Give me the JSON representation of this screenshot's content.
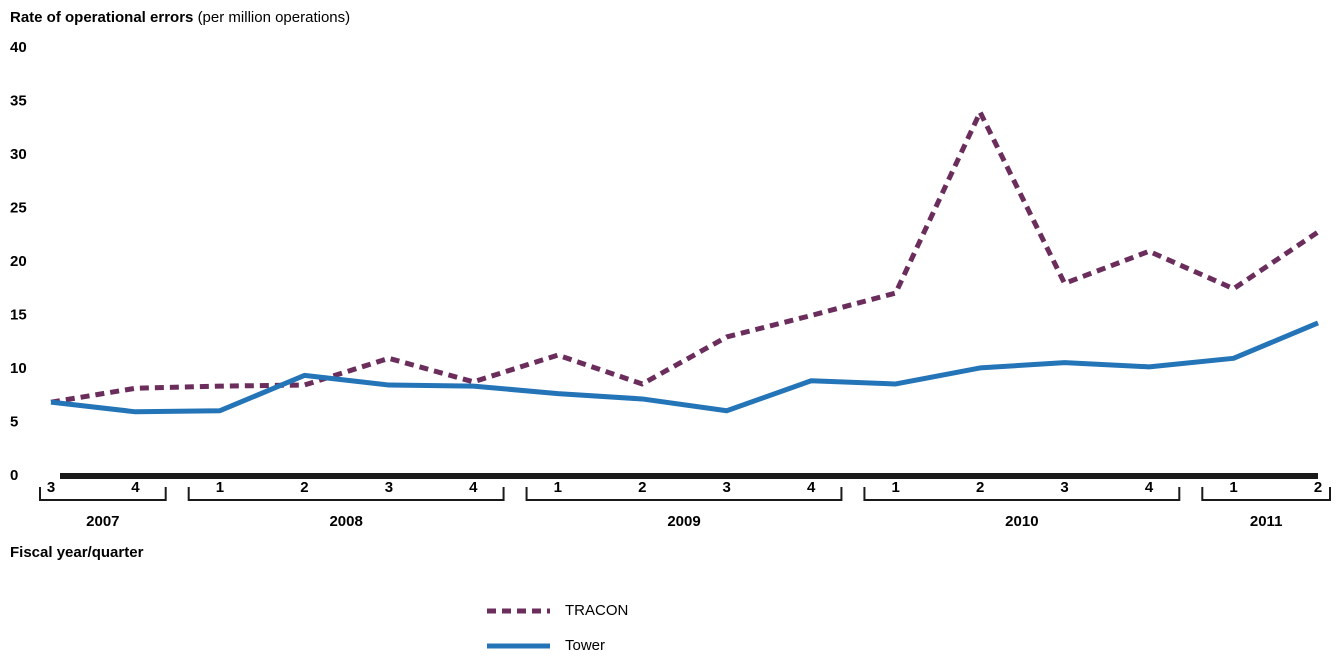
{
  "chart_data": {
    "type": "line",
    "y_label": "Rate of operational errors",
    "y_label_unit": "(per million operations)",
    "x_label": "Fiscal year/quarter",
    "categories": [
      "3",
      "4",
      "1",
      "2",
      "3",
      "4",
      "1",
      "2",
      "3",
      "4",
      "1",
      "2",
      "3",
      "4",
      "1",
      "2"
    ],
    "year_groups": [
      {
        "label": "2007",
        "count": 2
      },
      {
        "label": "2008",
        "count": 4
      },
      {
        "label": "2009",
        "count": 4
      },
      {
        "label": "2010",
        "count": 4
      },
      {
        "label": "2011",
        "count": 2
      }
    ],
    "series": [
      {
        "name": "TRACON",
        "color": "#6b2d5c",
        "dashed": true,
        "values": [
          6.9,
          8.2,
          8.4,
          8.5,
          11.0,
          8.8,
          11.3,
          8.6,
          13.0,
          15.0,
          17.1,
          34.0,
          18.0,
          21.0,
          17.5,
          22.8
        ]
      },
      {
        "name": "Tower",
        "color": "#2474b8",
        "dashed": false,
        "values": [
          6.9,
          6.0,
          6.1,
          9.4,
          8.5,
          8.4,
          7.7,
          7.2,
          6.1,
          8.9,
          8.6,
          10.1,
          10.6,
          10.2,
          11.0,
          14.3
        ]
      }
    ],
    "ylim": [
      0,
      40
    ],
    "yticks": [
      0,
      5,
      10,
      15,
      20,
      25,
      30,
      35,
      40
    ],
    "grid": false,
    "legend": "bottom"
  }
}
